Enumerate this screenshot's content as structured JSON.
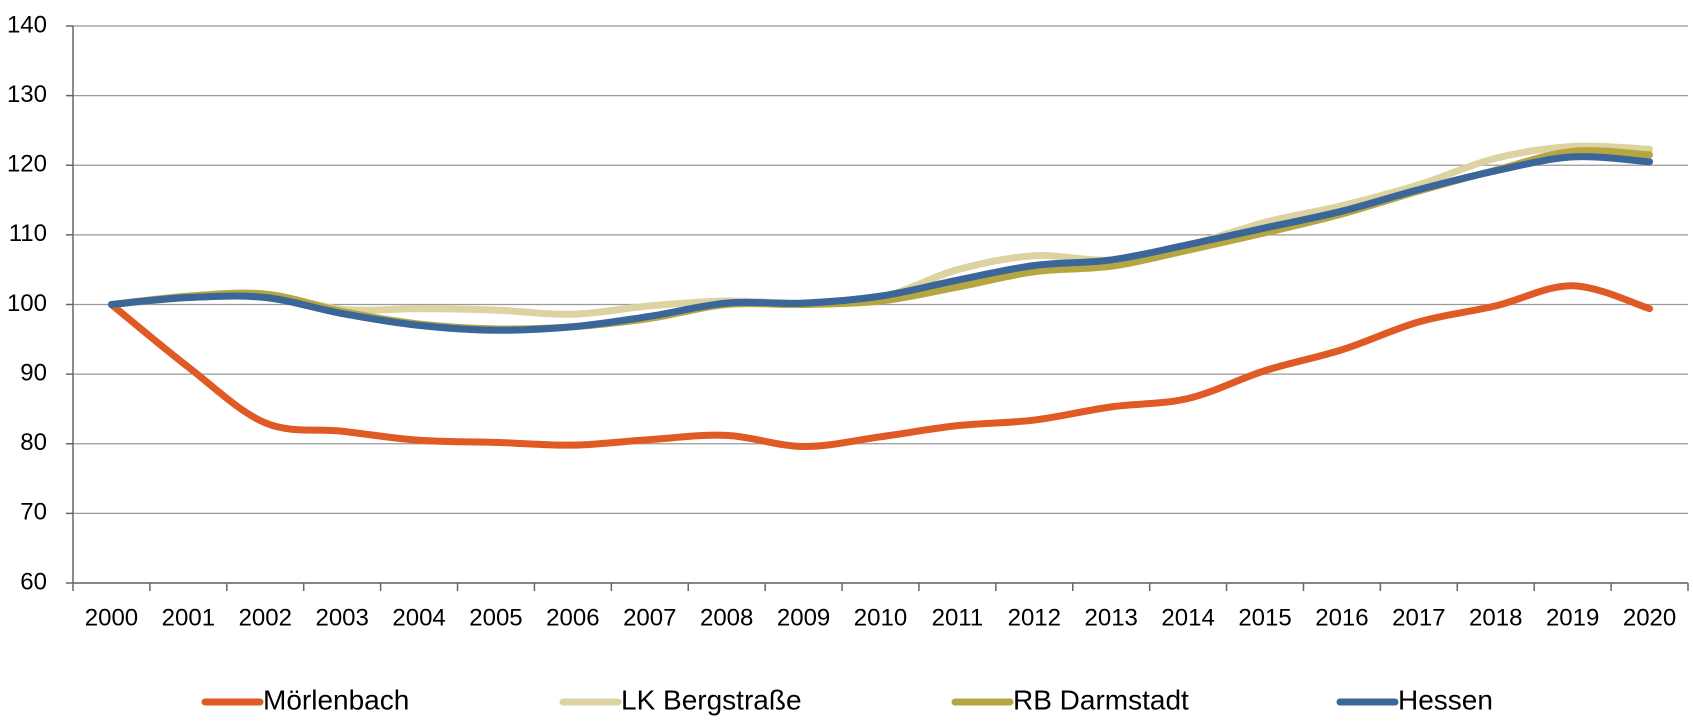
{
  "chart_data": {
    "type": "line",
    "categories": [
      "2000",
      "2001",
      "2002",
      "2003",
      "2004",
      "2005",
      "2006",
      "2007",
      "2008",
      "2009",
      "2010",
      "2011",
      "2012",
      "2013",
      "2014",
      "2015",
      "2016",
      "2017",
      "2018",
      "2019",
      "2020"
    ],
    "series": [
      {
        "name": "Mörlenbach",
        "color": "#e05a25",
        "values": [
          100,
          91,
          83,
          81.8,
          80.5,
          80.2,
          79.8,
          80.6,
          81.2,
          79.6,
          81,
          82.6,
          83.4,
          85.3,
          86.5,
          90.5,
          93.5,
          97.5,
          99.8,
          102.7,
          99.4
        ]
      },
      {
        "name": "LK Bergstraße",
        "color": "#dcd3a0",
        "values": [
          100,
          101,
          101.5,
          99.3,
          99.4,
          99.2,
          98.6,
          99.8,
          100.5,
          100.2,
          101,
          105,
          107,
          106.4,
          108.5,
          111.8,
          114.2,
          117.2,
          121,
          122.7,
          122.3
        ]
      },
      {
        "name": "RB Darmstadt",
        "color": "#b5a642",
        "values": [
          100,
          101.2,
          101.5,
          99,
          97.2,
          96.5,
          96.8,
          98,
          100,
          100,
          100.5,
          102.5,
          104.7,
          105.5,
          107.8,
          110.3,
          113,
          116.3,
          119.3,
          122,
          121.5
        ]
      },
      {
        "name": "Hessen",
        "color": "#3a6699",
        "values": [
          100,
          101,
          101,
          98.7,
          97,
          96.3,
          96.8,
          98.3,
          100.2,
          100.2,
          101.2,
          103.5,
          105.6,
          106.4,
          108.6,
          111,
          113.4,
          116.5,
          119.2,
          121.2,
          120.5
        ]
      }
    ],
    "ylim": [
      60,
      140
    ],
    "yticks": [
      60,
      70,
      80,
      90,
      100,
      110,
      120,
      130,
      140
    ],
    "grid": true,
    "smooth": true,
    "legend": "bottom"
  }
}
